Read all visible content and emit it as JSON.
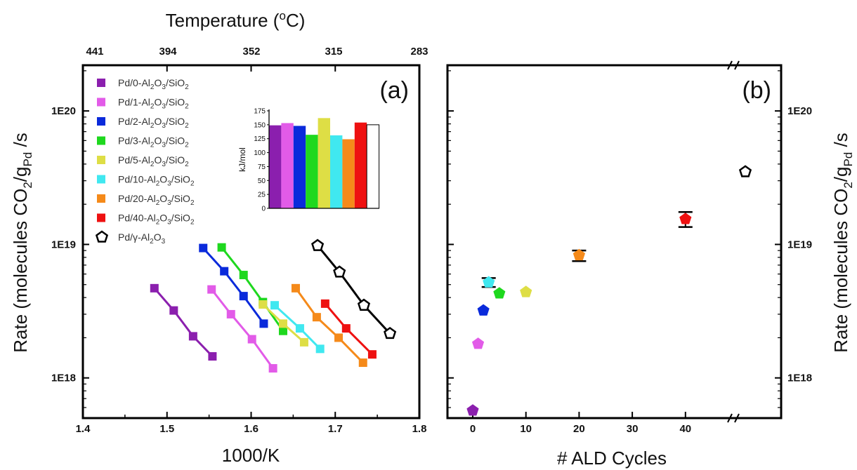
{
  "chart_data": [
    {
      "panel": "(a)",
      "type": "line",
      "xlabel": "1000/K",
      "top_xlabel": "Temperature (",
      "top_xlabel_sup": "o",
      "top_xlabel_end": "C)",
      "ylabel": "Rate (molecules CO",
      "ylabel_sub1": "2",
      "ylabel_mid": "/g",
      "ylabel_sub2": "Pd",
      "ylabel_end": " /s",
      "y_scale": "log",
      "xlim": [
        1.4,
        1.8
      ],
      "ylim": [
        5e+17,
        2.2e+20
      ],
      "x_ticks": [
        "1.4",
        "1.5",
        "1.6",
        "1.7",
        "1.8"
      ],
      "y_ticks": [
        {
          "value": 1e+18,
          "label": "1E18"
        },
        {
          "value": 1e+19,
          "label": "1E19"
        },
        {
          "value": 1e+20,
          "label": "1E20"
        }
      ],
      "top_ticks": [
        "441",
        "394",
        "352",
        "315",
        "283"
      ],
      "series": [
        {
          "name_main": "Pd/0-Al",
          "name_tail": "O",
          "name_end": "/SiO",
          "color": "#8b1fae",
          "marker": "square",
          "x": [
            1.485,
            1.508,
            1.531,
            1.554
          ],
          "y": [
            4.7e+18,
            3.2e+18,
            2.05e+18,
            1.45e+18
          ]
        },
        {
          "name_main": "Pd/1-Al",
          "name_tail": "O",
          "name_end": "/SiO",
          "color": "#e25be8",
          "marker": "square",
          "x": [
            1.553,
            1.576,
            1.601,
            1.626
          ],
          "y": [
            4.6e+18,
            3e+18,
            1.95e+18,
            1.18e+18
          ]
        },
        {
          "name_main": "Pd/2-Al",
          "name_tail": "O",
          "name_end": "/SiO",
          "color": "#0a2adb",
          "marker": "square",
          "x": [
            1.543,
            1.568,
            1.591,
            1.615
          ],
          "y": [
            9.4e+18,
            6.3e+18,
            4.1e+18,
            2.55e+18
          ]
        },
        {
          "name_main": "Pd/3-Al",
          "name_tail": "O",
          "name_end": "/SiO",
          "color": "#1ed81e",
          "marker": "square",
          "x": [
            1.565,
            1.591,
            1.614,
            1.638
          ],
          "y": [
            9.5e+18,
            5.9e+18,
            3.7e+18,
            2.25e+18
          ]
        },
        {
          "name_main": "Pd/5-Al",
          "name_tail": "O",
          "name_end": "/SiO",
          "color": "#dede45",
          "marker": "square",
          "x": [
            1.614,
            1.638,
            1.663
          ],
          "y": [
            3.55e+18,
            2.55e+18,
            1.85e+18
          ]
        },
        {
          "name_main": "Pd/10-Al",
          "name_tail": "O",
          "name_end": "/SiO",
          "color": "#40e8f0",
          "marker": "square",
          "x": [
            1.628,
            1.658,
            1.682
          ],
          "y": [
            3.5e+18,
            2.35e+18,
            1.65e+18
          ]
        },
        {
          "name_main": "Pd/20-Al",
          "name_tail": "O",
          "name_end": "/SiO",
          "color": "#f58a1a",
          "marker": "square",
          "x": [
            1.653,
            1.678,
            1.704,
            1.733
          ],
          "y": [
            4.7e+18,
            2.85e+18,
            2e+18,
            1.3e+18
          ]
        },
        {
          "name_main": "Pd/40-Al",
          "name_tail": "O",
          "name_end": "/SiO",
          "color": "#ee1111",
          "marker": "square",
          "x": [
            1.688,
            1.713,
            1.744
          ],
          "y": [
            3.6e+18,
            2.35e+18,
            1.5e+18
          ]
        },
        {
          "name_main": "Pd/γ-Al",
          "name_tail": "O",
          "name_end": "",
          "color": "#000000",
          "marker": "pentagon",
          "x": [
            1.679,
            1.705,
            1.734,
            1.765
          ],
          "y": [
            9.8e+18,
            6.2e+18,
            3.5e+18,
            2.15e+18
          ]
        }
      ],
      "legend_sub1": "2",
      "legend_sub2": "3",
      "legend_sub3": "2",
      "legend_placement": "top-left",
      "inset": {
        "type": "bar",
        "ylabel": "kJ/mol",
        "ylim": [
          0,
          175
        ],
        "y_ticks": [
          "0",
          "25",
          "50",
          "75",
          "100",
          "125",
          "150",
          "175"
        ],
        "values": [
          149,
          153,
          148,
          132,
          162,
          131,
          124,
          154,
          150
        ],
        "colors": [
          "#8b1fae",
          "#e25be8",
          "#0a2adb",
          "#1ed81e",
          "#dede45",
          "#40e8f0",
          "#f58a1a",
          "#ee1111",
          "#ffffff"
        ]
      }
    },
    {
      "panel": "(b)",
      "type": "scatter",
      "xlabel": "# ALD Cycles",
      "y_scale": "log",
      "ylim": [
        5e+17,
        2.2e+20
      ],
      "x_ticks": [
        "0",
        "10",
        "20",
        "30",
        "40"
      ],
      "y_ticks": [
        {
          "value": 1e+18,
          "label": "1E18"
        },
        {
          "value": 1e+19,
          "label": "1E19"
        },
        {
          "value": 1e+20,
          "label": "1E20"
        }
      ],
      "points": [
        {
          "x": 0,
          "y": 5.7e+17,
          "color": "#8b1fae"
        },
        {
          "x": 1,
          "y": 1.8e+18,
          "color": "#e25be8"
        },
        {
          "x": 2,
          "y": 3.2e+18,
          "color": "#0a2adb"
        },
        {
          "x": 3,
          "y": 5.2e+18,
          "color": "#40e8f0",
          "err": [
            4.8e+18,
            5.6e+18
          ]
        },
        {
          "x": 5,
          "y": 4.3e+18,
          "color": "#1ed81e"
        },
        {
          "x": 10,
          "y": 4.4e+18,
          "color": "#dede45"
        },
        {
          "x": 20,
          "y": 8.3e+18,
          "color": "#f58a1a",
          "err": [
            7.5e+18,
            9e+18
          ]
        },
        {
          "x": 40,
          "y": 1.55e+19,
          "color": "#ee1111",
          "err": [
            1.35e+19,
            1.75e+19
          ]
        },
        {
          "x": "break",
          "y": 3.5e+19,
          "color": "#000000",
          "open": true
        }
      ]
    }
  ]
}
